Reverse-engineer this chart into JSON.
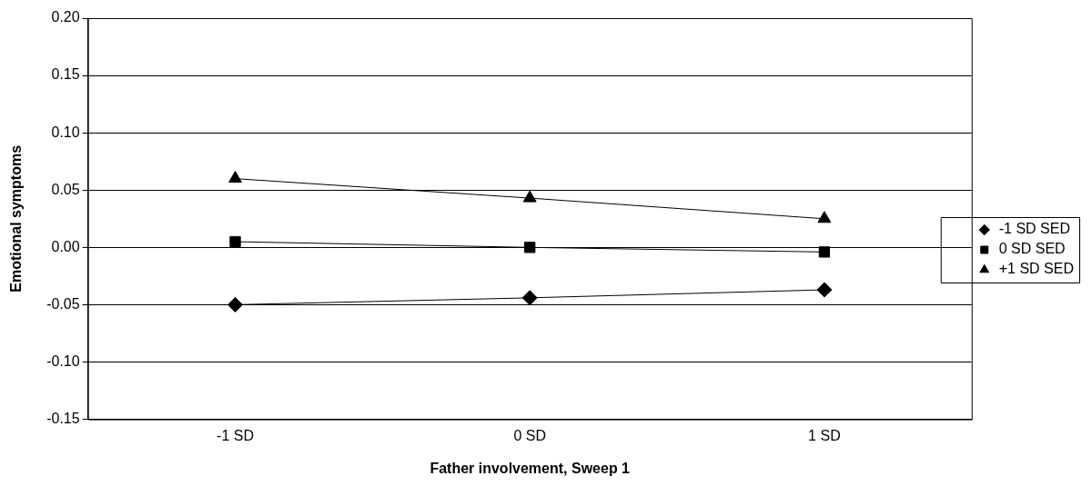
{
  "chart_data": {
    "type": "line",
    "xlabel": "Father involvement, Sweep 1",
    "ylabel": "Emotional symptoms",
    "categories": [
      "-1 SD",
      "0 SD",
      "1 SD"
    ],
    "series": [
      {
        "name": "-1 SD SED",
        "color": "#000000",
        "marker": "diamond",
        "values": [
          -0.05,
          -0.044,
          -0.037
        ]
      },
      {
        "name": "0 SD SED",
        "color": "#000000",
        "marker": "square",
        "values": [
          0.005,
          0.0,
          -0.004
        ]
      },
      {
        "name": "+1 SD SED",
        "color": "#000000",
        "marker": "triangle",
        "values": [
          0.06,
          0.043,
          0.025
        ]
      }
    ],
    "ylim": [
      -0.15,
      0.2
    ],
    "yticks": [
      {
        "value": -0.15,
        "label": "-0.15"
      },
      {
        "value": -0.1,
        "label": "-0.10"
      },
      {
        "value": -0.05,
        "label": "-0.05"
      },
      {
        "value": 0,
        "label": "0.00"
      },
      {
        "value": 0.05,
        "label": "0.05"
      },
      {
        "value": 0.1,
        "label": "0.10"
      },
      {
        "value": 0.15,
        "label": "0.15"
      },
      {
        "value": 0.2,
        "label": "0.20"
      }
    ],
    "grid": "y",
    "legend": "right",
    "line_style": "solid"
  }
}
